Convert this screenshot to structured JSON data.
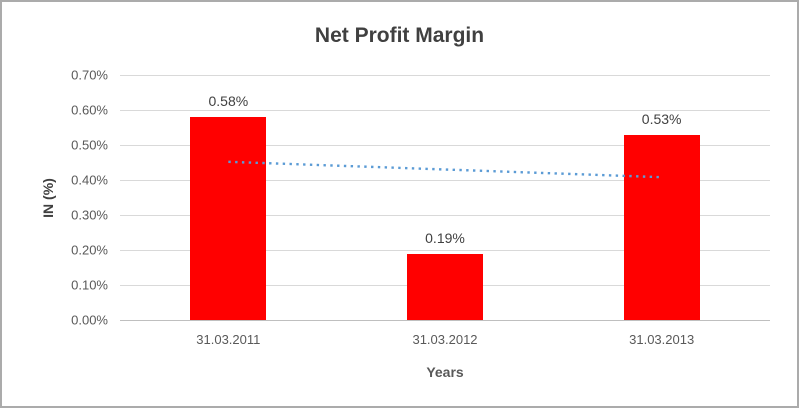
{
  "chart_data": {
    "type": "bar",
    "title": "Net Profit Margin",
    "xlabel": "Years",
    "ylabel": "IN (%)",
    "categories": [
      "31.03.2011",
      "31.03.2012",
      "31.03.2013"
    ],
    "values": [
      0.58,
      0.19,
      0.53
    ],
    "data_labels": [
      "0.58%",
      "0.19%",
      "0.53%"
    ],
    "ylim": [
      0,
      0.7
    ],
    "ytick_step": 0.1,
    "ytick_labels": [
      "0.00%",
      "0.10%",
      "0.20%",
      "0.30%",
      "0.40%",
      "0.50%",
      "0.60%",
      "0.70%"
    ],
    "grid": true,
    "legend": "none",
    "bar_color": "#FF0000",
    "trendline": {
      "style": "dotted",
      "color": "#5B9BD5",
      "start_value": 0.452,
      "end_value": 0.408
    }
  }
}
